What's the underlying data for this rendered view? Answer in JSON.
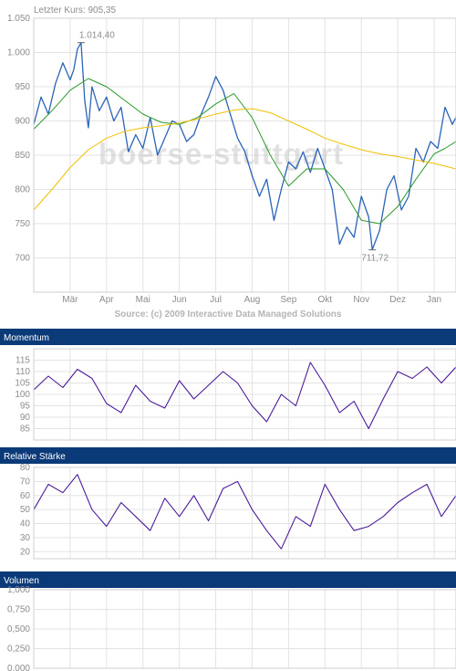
{
  "header": {
    "last_price": "Letzter Kurs: 905,35"
  },
  "watermark": "boerse-stuttgart",
  "source": "Source: (c) 2009 Interactive Data Managed Solutions",
  "colors": {
    "price": "#2a64b8",
    "ma_short": "#2a9a2a",
    "ma_long": "#f0c000",
    "indicator": "#4a1a9a",
    "header_bg": "#0b3a78"
  },
  "chart_data": [
    {
      "type": "line",
      "name": "price",
      "title": "",
      "xlabel": "",
      "ylabel": "",
      "ylim": [
        650,
        1050
      ],
      "yticks": [
        700,
        750,
        800,
        850,
        900,
        950,
        1000,
        1050
      ],
      "ytick_labels": [
        "700",
        "750",
        "800",
        "850",
        "900",
        "950",
        "1.000",
        "1.050"
      ],
      "x_months": [
        "Mär",
        "Apr",
        "Mai",
        "Jun",
        "Jul",
        "Aug",
        "Sep",
        "Okt",
        "Nov",
        "Dez",
        "Jan"
      ],
      "x_month_pos": [
        1,
        2,
        3,
        4,
        5,
        6,
        7,
        8,
        9,
        10,
        11
      ],
      "xlim": [
        0,
        11.6
      ],
      "annotations": [
        {
          "label": "1.014,40",
          "x": 1.3,
          "y": 1014.4
        },
        {
          "label": "711,72",
          "x": 9.3,
          "y": 711.72
        }
      ],
      "series": [
        {
          "key": "price",
          "x": [
            0,
            0.2,
            0.4,
            0.6,
            0.8,
            1.0,
            1.1,
            1.2,
            1.3,
            1.4,
            1.5,
            1.6,
            1.8,
            2.0,
            2.2,
            2.4,
            2.6,
            2.8,
            3.0,
            3.2,
            3.4,
            3.6,
            3.8,
            4.0,
            4.2,
            4.4,
            4.6,
            4.8,
            5.0,
            5.2,
            5.4,
            5.6,
            5.8,
            6.0,
            6.2,
            6.4,
            6.6,
            6.8,
            7.0,
            7.2,
            7.4,
            7.6,
            7.8,
            8.0,
            8.2,
            8.4,
            8.6,
            8.8,
            9.0,
            9.2,
            9.3,
            9.5,
            9.7,
            9.9,
            10.1,
            10.3,
            10.5,
            10.7,
            10.9,
            11.1,
            11.3,
            11.5,
            11.6
          ],
          "values": [
            895,
            935,
            910,
            955,
            985,
            960,
            975,
            1005,
            1014.4,
            930,
            890,
            950,
            915,
            935,
            900,
            920,
            855,
            880,
            860,
            905,
            850,
            875,
            900,
            895,
            870,
            880,
            910,
            935,
            965,
            945,
            910,
            875,
            855,
            820,
            790,
            815,
            755,
            800,
            840,
            830,
            855,
            825,
            860,
            830,
            800,
            720,
            745,
            730,
            790,
            760,
            712,
            740,
            800,
            820,
            770,
            790,
            860,
            840,
            870,
            860,
            920,
            895,
            905.35
          ]
        },
        {
          "key": "ma_short",
          "x": [
            0,
            0.5,
            1.0,
            1.5,
            2.0,
            2.5,
            3.0,
            3.5,
            4.0,
            4.5,
            5.0,
            5.5,
            6.0,
            6.5,
            7.0,
            7.5,
            8.0,
            8.5,
            9.0,
            9.5,
            10.0,
            10.5,
            11.0,
            11.3,
            11.6
          ],
          "values": [
            888,
            915,
            945,
            962,
            950,
            930,
            910,
            898,
            895,
            905,
            925,
            940,
            905,
            850,
            805,
            830,
            830,
            800,
            755,
            750,
            775,
            815,
            852,
            860,
            870
          ]
        },
        {
          "key": "ma_long",
          "x": [
            0,
            0.5,
            1.0,
            1.5,
            2.0,
            2.5,
            3.0,
            3.5,
            4.0,
            4.5,
            5.0,
            5.5,
            6.0,
            6.5,
            7.0,
            7.5,
            8.0,
            8.5,
            9.0,
            9.5,
            10.0,
            10.5,
            11.0,
            11.3,
            11.6
          ],
          "values": [
            770,
            800,
            832,
            858,
            875,
            885,
            890,
            893,
            897,
            903,
            910,
            916,
            918,
            912,
            900,
            888,
            875,
            866,
            858,
            852,
            848,
            843,
            838,
            834,
            830
          ]
        }
      ]
    },
    {
      "type": "line",
      "name": "momentum",
      "title": "Momentum",
      "ylim": [
        80,
        120
      ],
      "yticks": [
        85,
        90,
        95,
        100,
        105,
        110,
        115
      ],
      "ytick_labels": [
        "85",
        "90",
        "95",
        "100",
        "105",
        "110",
        "115"
      ],
      "series": [
        {
          "key": "momentum",
          "x": [
            0,
            0.4,
            0.8,
            1.2,
            1.6,
            2.0,
            2.4,
            2.8,
            3.2,
            3.6,
            4.0,
            4.4,
            4.8,
            5.2,
            5.6,
            6.0,
            6.4,
            6.8,
            7.2,
            7.6,
            8.0,
            8.4,
            8.8,
            9.2,
            9.6,
            10.0,
            10.4,
            10.8,
            11.2,
            11.6
          ],
          "values": [
            102,
            108,
            103,
            111,
            107,
            96,
            92,
            104,
            97,
            94,
            106,
            98,
            104,
            110,
            105,
            95,
            88,
            100,
            95,
            114,
            104,
            92,
            97,
            85,
            98,
            110,
            107,
            112,
            105,
            112
          ]
        }
      ]
    },
    {
      "type": "line",
      "name": "relative_strength",
      "title": "Relative Stärke",
      "ylim": [
        15,
        80
      ],
      "yticks": [
        20,
        30,
        40,
        50,
        60,
        70,
        80
      ],
      "ytick_labels": [
        "20",
        "30",
        "40",
        "50",
        "60",
        "70",
        "80"
      ],
      "series": [
        {
          "key": "rsi",
          "x": [
            0,
            0.4,
            0.8,
            1.2,
            1.6,
            2.0,
            2.4,
            2.8,
            3.2,
            3.6,
            4.0,
            4.4,
            4.8,
            5.2,
            5.6,
            6.0,
            6.4,
            6.8,
            7.2,
            7.6,
            8.0,
            8.4,
            8.8,
            9.2,
            9.6,
            10.0,
            10.4,
            10.8,
            11.2,
            11.6
          ],
          "values": [
            50,
            68,
            62,
            75,
            50,
            38,
            55,
            45,
            35,
            58,
            45,
            60,
            42,
            65,
            70,
            50,
            35,
            22,
            45,
            38,
            68,
            50,
            35,
            38,
            45,
            55,
            62,
            68,
            45,
            60
          ]
        }
      ]
    },
    {
      "type": "bar",
      "name": "volume",
      "title": "Volumen",
      "ylim": [
        0,
        1
      ],
      "yticks": [
        0,
        0.25,
        0.5,
        0.75,
        1.0
      ],
      "ytick_labels": [
        "0,000",
        "0,250",
        "0,500",
        "0,750",
        "1,000"
      ],
      "values": []
    }
  ]
}
